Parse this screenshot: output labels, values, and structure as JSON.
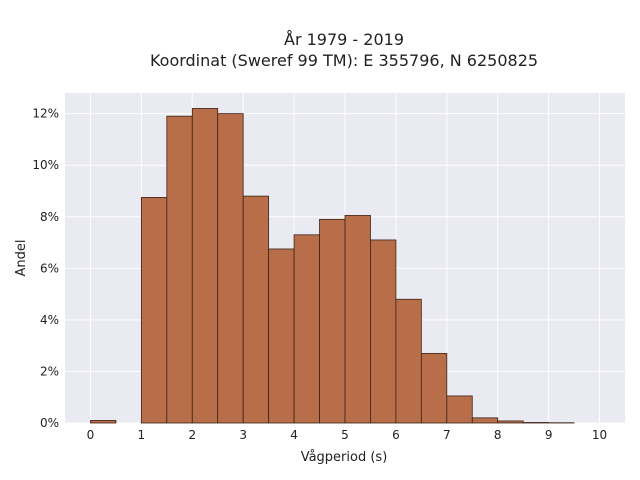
{
  "chart_data": {
    "type": "bar",
    "title": "År 1979 - 2019",
    "subtitle": "Koordinat (Sweref 99 TM): E 355796, N 6250825",
    "xlabel": "Vågperiod (s)",
    "ylabel": "Andel",
    "xlim": [
      -0.5,
      10.5
    ],
    "ylim": [
      0,
      12.8
    ],
    "x_ticks": [
      0,
      1,
      2,
      3,
      4,
      5,
      6,
      7,
      8,
      9,
      10
    ],
    "x_tick_labels": [
      "0",
      "1",
      "2",
      "3",
      "4",
      "5",
      "6",
      "7",
      "8",
      "9",
      "10"
    ],
    "y_ticks": [
      0,
      2,
      4,
      6,
      8,
      10,
      12
    ],
    "y_tick_labels": [
      "0%",
      "2%",
      "4%",
      "6%",
      "8%",
      "10%",
      "12%"
    ],
    "bin_width": 0.5,
    "bins": [
      {
        "start": 0.0,
        "value": 0.1
      },
      {
        "start": 0.5,
        "value": 0.0
      },
      {
        "start": 1.0,
        "value": 8.75
      },
      {
        "start": 1.5,
        "value": 11.9
      },
      {
        "start": 2.0,
        "value": 12.2
      },
      {
        "start": 2.5,
        "value": 12.0
      },
      {
        "start": 3.0,
        "value": 8.8
      },
      {
        "start": 3.5,
        "value": 6.75
      },
      {
        "start": 4.0,
        "value": 7.3
      },
      {
        "start": 4.5,
        "value": 7.9
      },
      {
        "start": 5.0,
        "value": 8.05
      },
      {
        "start": 5.5,
        "value": 7.1
      },
      {
        "start": 6.0,
        "value": 4.8
      },
      {
        "start": 6.5,
        "value": 2.7
      },
      {
        "start": 7.0,
        "value": 1.05
      },
      {
        "start": 7.5,
        "value": 0.2
      },
      {
        "start": 8.0,
        "value": 0.08
      },
      {
        "start": 8.5,
        "value": 0.02
      },
      {
        "start": 9.0,
        "value": 0.01
      }
    ],
    "grid": true,
    "colors": {
      "bar_fill": "#b86f49",
      "bar_stroke": "#3a2418",
      "plot_background": "#eaeaf2",
      "grid": "#ffffff"
    }
  }
}
